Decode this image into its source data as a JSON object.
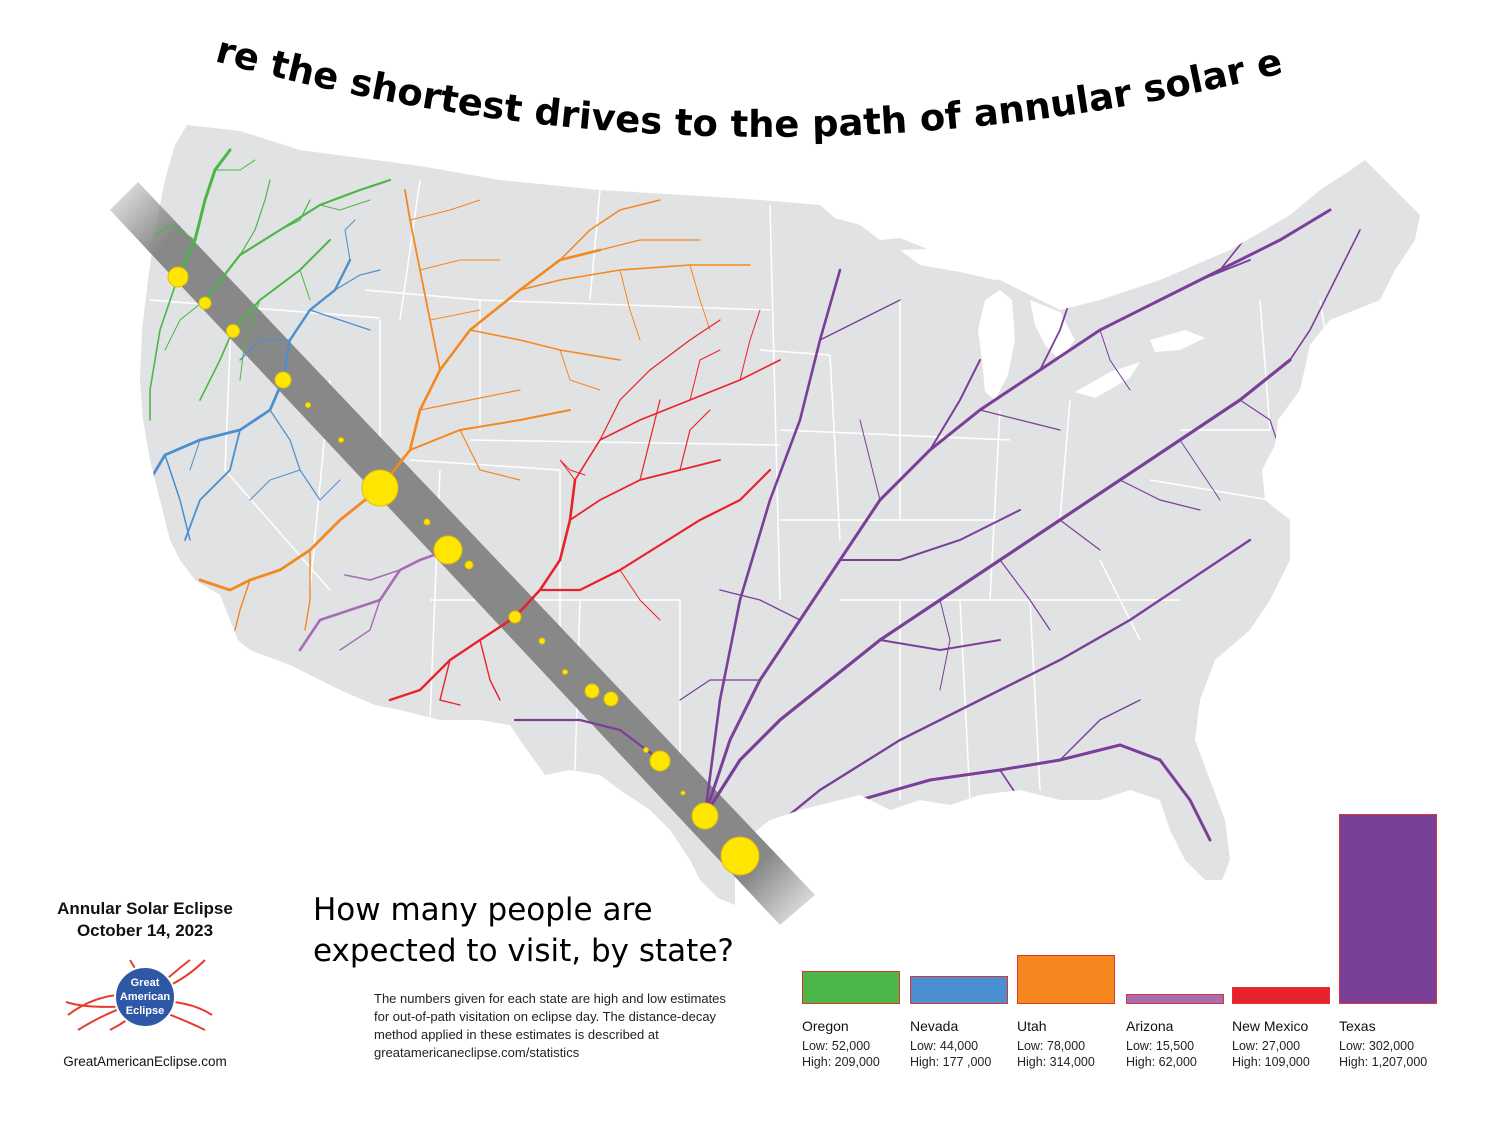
{
  "headline": "What are the shortest drives to the path of annular solar eclipse?",
  "event": {
    "name": "Annular Solar Eclipse",
    "date": "October 14, 2023",
    "logo_lines": [
      "Great",
      "American",
      "Eclipse"
    ],
    "website": "GreatAmericanEclipse.com"
  },
  "visitors": {
    "question_line1": "How many people are",
    "question_line2": "expected to visit, by state?",
    "note": "The numbers given for each state are high and low estimates for out-of-path visitation on eclipse day. The distance-decay method applied in these estimates is described at greatamericaneclipse.com/statistics"
  },
  "chart_data": {
    "type": "bar",
    "title": "",
    "categories": [
      "Oregon",
      "Nevada",
      "Utah",
      "Arizona",
      "New Mexico",
      "Texas"
    ],
    "values": [
      209000,
      177000,
      314000,
      62000,
      109000,
      1207000
    ],
    "low_labels": [
      "Low: 52,000",
      "Low: 44,000",
      "Low: 78,000",
      "Low: 15,500",
      "Low: 27,000",
      "Low: 302,000"
    ],
    "high_labels": [
      "High: 209,000",
      "High: 177 ,000",
      "High: 314,000",
      "High: 62,000",
      "High: 109,000",
      "High: 1,207,000"
    ],
    "colors": [
      "#4cb648",
      "#4a8fcf",
      "#f5871f",
      "#a56db3",
      "#e8222b",
      "#7a3f98"
    ],
    "xlabel": "",
    "ylabel": ""
  },
  "map": {
    "colors": {
      "land": "#e1e2e3",
      "path": "#8c8c8c",
      "oregon": "#4cb648",
      "nevada": "#4a8fcf",
      "utah": "#f5871f",
      "arizona": "#a56db3",
      "new_mexico": "#e8222b",
      "texas": "#7a3f98",
      "destination": "#ffe600"
    }
  }
}
